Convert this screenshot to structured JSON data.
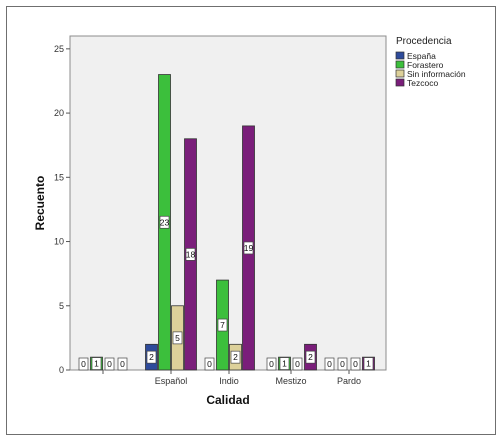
{
  "chart_data": {
    "type": "bar",
    "xlabel": "Calidad",
    "ylabel": "Recuento",
    "categories": [
      "",
      "Español",
      "Indio",
      "Mestizo",
      "Pardo"
    ],
    "ylim": [
      0,
      26
    ],
    "yticks": [
      0,
      5,
      10,
      15,
      20,
      25
    ],
    "legend_title": "Procedencia",
    "legend_position": "top-right",
    "grid": false,
    "series": [
      {
        "name": "España",
        "color": "#2e4b9b",
        "values": [
          0,
          2,
          0,
          0,
          0
        ]
      },
      {
        "name": "Forastero",
        "color": "#3cbf3c",
        "values": [
          1,
          23,
          7,
          1,
          0
        ]
      },
      {
        "name": "Sin información",
        "color": "#ddd19a",
        "values": [
          0,
          5,
          2,
          0,
          0
        ]
      },
      {
        "name": "Tezcoco",
        "color": "#7a1e7a",
        "values": [
          0,
          18,
          19,
          2,
          1
        ]
      }
    ]
  }
}
